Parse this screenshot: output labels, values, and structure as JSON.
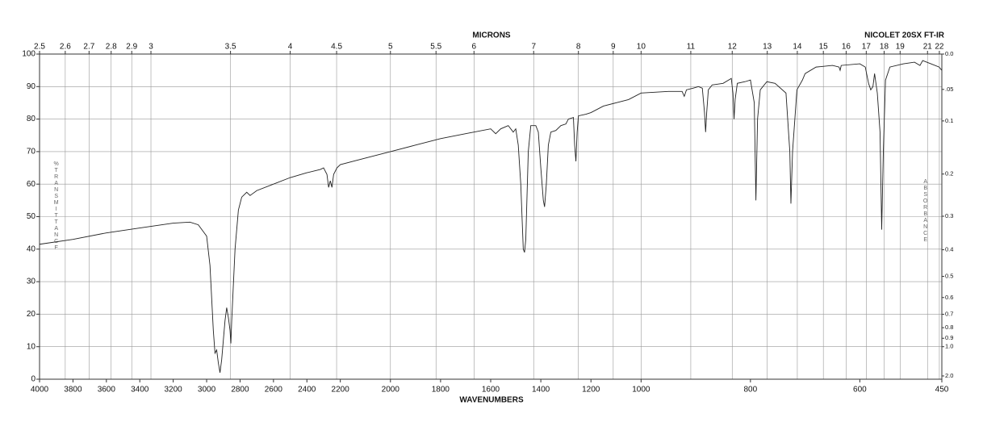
{
  "chart_data": {
    "type": "line",
    "title": "NICOLET 20SX FT-IR",
    "xlabel": "WAVENUMBERS",
    "x2label": "MICRONS",
    "ylabel": "%TRANSMITTANCE",
    "y2label": "ABSORBANCE",
    "xlim": [
      4000,
      450
    ],
    "xbreaks": [
      2200,
      1000
    ],
    "xticks": [
      4000,
      3800,
      3600,
      3400,
      3200,
      3000,
      2800,
      2600,
      2400,
      2200,
      2000,
      1800,
      1600,
      1400,
      1200,
      1000,
      800,
      600,
      450
    ],
    "x2ticks": [
      2.5,
      2.6,
      2.7,
      2.8,
      2.9,
      3,
      3.5,
      4,
      4.5,
      5,
      5.5,
      6,
      7,
      8,
      9,
      10,
      11,
      12,
      13,
      14,
      15,
      16,
      17,
      18,
      19,
      21,
      22
    ],
    "ylim": [
      0,
      100
    ],
    "yticks": [
      0,
      10,
      20,
      30,
      40,
      50,
      60,
      70,
      80,
      90,
      100
    ],
    "y2ticks": [
      {
        "value": 0,
        "label": "0.0"
      },
      {
        "value": 0.05,
        "label": ".05"
      },
      0.1,
      0.2,
      0.3,
      0.4,
      0.5,
      0.6,
      0.7,
      0.8,
      0.9,
      {
        "value": 1,
        "label": "1.0"
      },
      {
        "value": 2,
        "label": "2.0"
      }
    ],
    "grid": true,
    "series": [
      {
        "color": "#222222",
        "x": [
          4000,
          3800,
          3600,
          3400,
          3200,
          3100,
          3050,
          3000,
          2980,
          2960,
          2950,
          2940,
          2930,
          2920,
          2910,
          2890,
          2880,
          2870,
          2860,
          2855,
          2850,
          2830,
          2810,
          2790,
          2760,
          2740,
          2700,
          2600,
          2500,
          2400,
          2320,
          2300,
          2280,
          2270,
          2260,
          2250,
          2240,
          2220,
          2200,
          2100,
          2000,
          1900,
          1800,
          1700,
          1600,
          1580,
          1560,
          1530,
          1510,
          1500,
          1490,
          1480,
          1470,
          1465,
          1460,
          1450,
          1440,
          1420,
          1410,
          1400,
          1390,
          1385,
          1378,
          1370,
          1360,
          1340,
          1320,
          1300,
          1290,
          1270,
          1265,
          1260,
          1255,
          1250,
          1220,
          1200,
          1150,
          1100,
          1050,
          1000,
          950,
          925,
          921,
          917,
          905,
          895,
          888,
          884,
          882,
          880,
          877,
          870,
          850,
          835,
          832,
          830,
          828,
          824,
          810,
          800,
          793,
          790,
          787,
          782,
          770,
          755,
          735,
          728,
          726,
          723,
          715,
          705,
          700,
          680,
          650,
          638,
          636,
          634,
          600,
          590,
          584,
          580,
          576,
          573,
          568,
          563,
          560,
          557,
          553,
          545,
          520,
          500,
          490,
          485,
          470,
          455,
          450
        ],
        "values": [
          41.5,
          43,
          45,
          46.5,
          48,
          48.3,
          47.5,
          44,
          35,
          15,
          8,
          9,
          5,
          2,
          6,
          18,
          22,
          19,
          15,
          11,
          18,
          40,
          52,
          56,
          57.5,
          56.5,
          58,
          60,
          62,
          63.5,
          64.5,
          65,
          63,
          59,
          61,
          59,
          63,
          65,
          66,
          68,
          70,
          72,
          74,
          75.5,
          77,
          75.5,
          77,
          78,
          76,
          77,
          72,
          60,
          40,
          39,
          43,
          70,
          78,
          78,
          76,
          65,
          55,
          53,
          60,
          72,
          76,
          76.5,
          78,
          78.5,
          80,
          80.5,
          72,
          67,
          76,
          81,
          81.5,
          82,
          84,
          85,
          86,
          88,
          88.5,
          88.5,
          87,
          89,
          89.5,
          90,
          89.5,
          82,
          76,
          82,
          89,
          90.5,
          91,
          92.5,
          88,
          80,
          86,
          91,
          91.5,
          92,
          85,
          55,
          80,
          89,
          91.5,
          91,
          88,
          70,
          54,
          70,
          89,
          92,
          94,
          96,
          96.5,
          96,
          95,
          96.5,
          97,
          96,
          91,
          89,
          90,
          94,
          88,
          76,
          46,
          70,
          92,
          96,
          97,
          97.5,
          96.5,
          98,
          97,
          96,
          95
        ]
      }
    ]
  }
}
